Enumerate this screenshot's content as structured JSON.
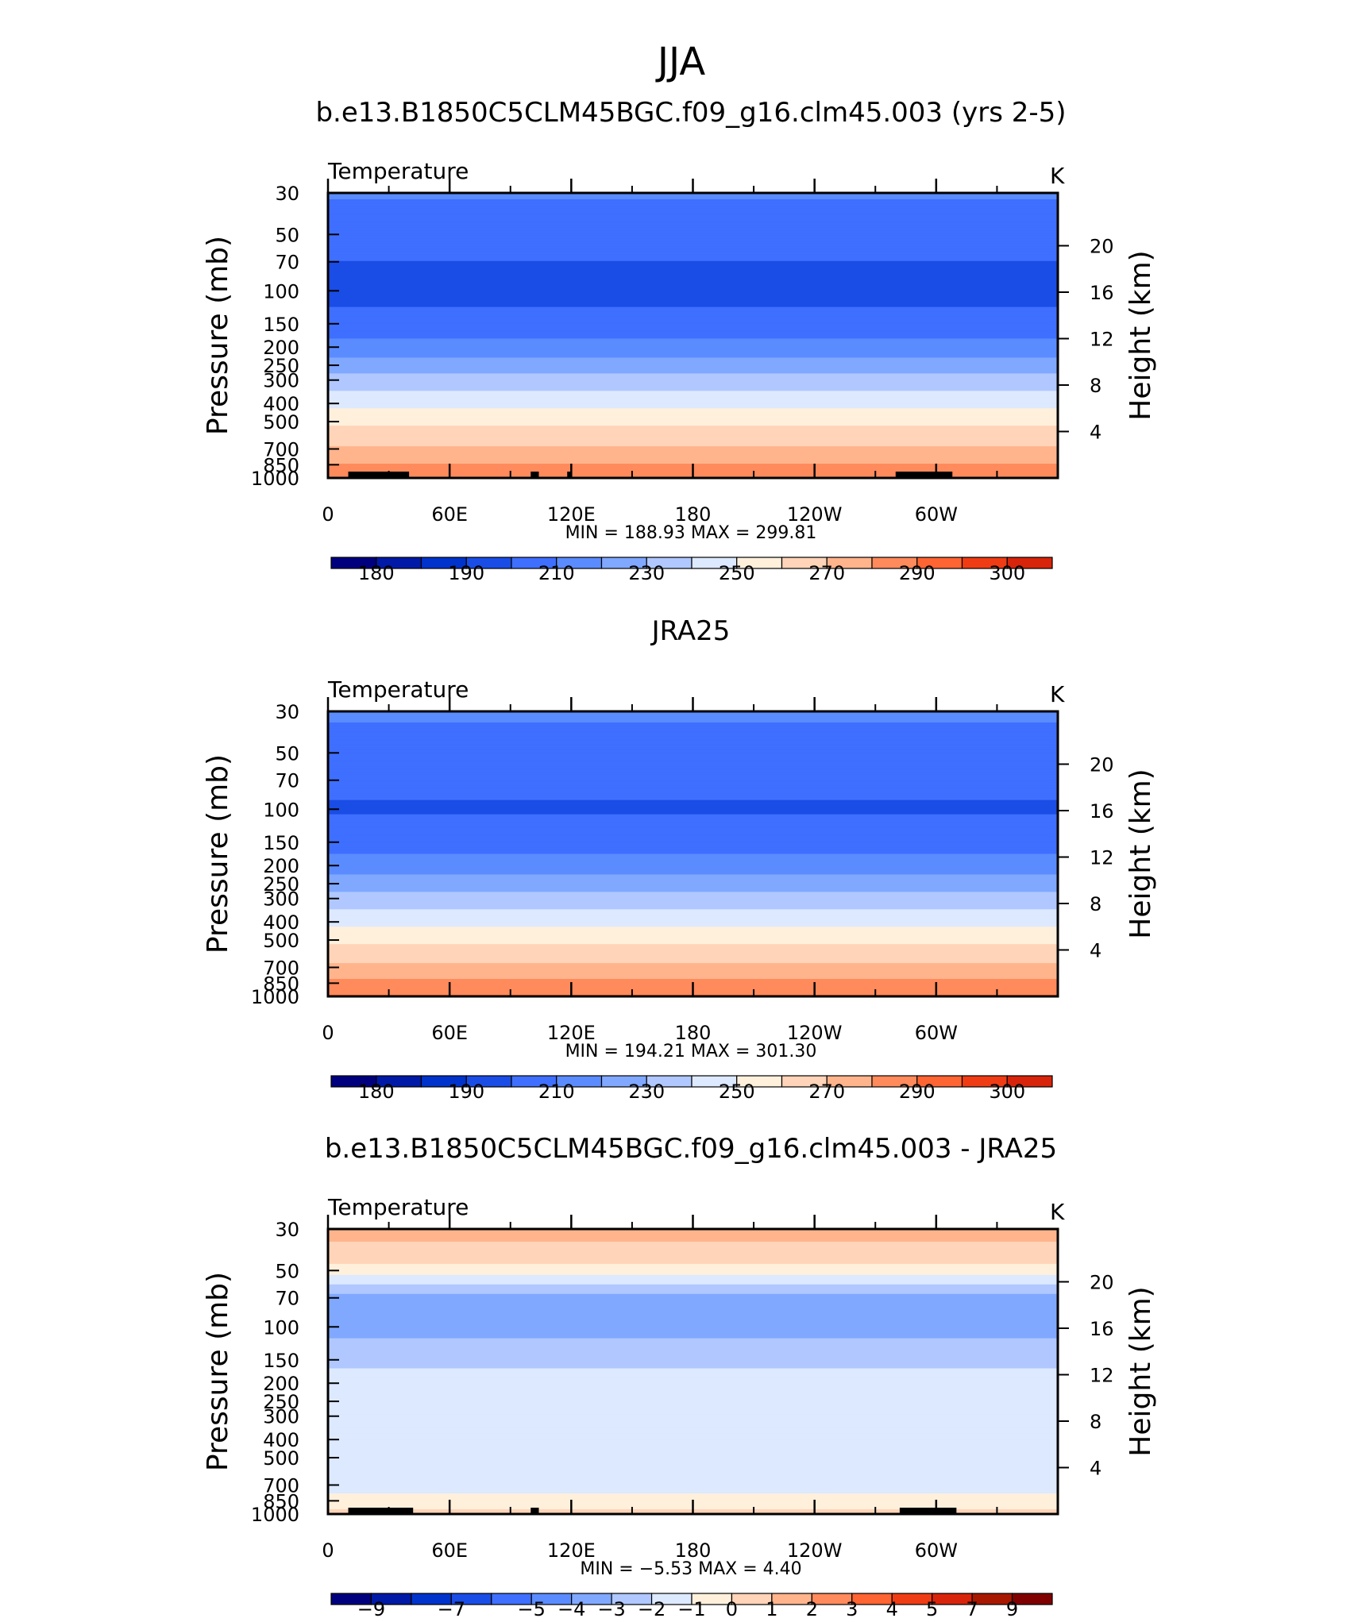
{
  "page": {
    "title": "JJA"
  },
  "colors": {
    "abs_levels_palette": [
      "#00007f",
      "#0019a6",
      "#0033cc",
      "#1a4de6",
      "#3f6fff",
      "#5b8cff",
      "#80a8ff",
      "#b0c8ff",
      "#dde9ff",
      "#fff0dc",
      "#ffd4b8",
      "#ffb48c",
      "#ff8a5c",
      "#ff6433",
      "#f03c14",
      "#d8240a",
      "#a81800",
      "#800000"
    ],
    "diff_levels_palette": [
      "#00007f",
      "#0019a6",
      "#0033cc",
      "#1a4de6",
      "#3f6fff",
      "#5b8cff",
      "#80a8ff",
      "#b0c8ff",
      "#dde9ff",
      "#fff0dc",
      "#ffd4b8",
      "#ffb48c",
      "#ff8a5c",
      "#ff6433",
      "#f03c14",
      "#d8240a",
      "#a81800",
      "#800000"
    ],
    "land_mask": "#000000"
  },
  "chart_data": [
    {
      "type": "heatmap",
      "title": "b.e13.B1850C5CLM45BGC.f09_g16.clm45.003 (yrs 2-5)",
      "field_label": "Temperature",
      "units": "K",
      "ylabel": "Pressure (mb)",
      "ylabel_right": "Height (km)",
      "x_ticklabels": [
        "0",
        "60E",
        "120E",
        "180",
        "120W",
        "60W"
      ],
      "x_values": [
        0,
        60,
        120,
        180,
        240,
        300
      ],
      "xlim": [
        0,
        360
      ],
      "y_ticklabels": [
        "30",
        "50",
        "70",
        "100",
        "150",
        "200",
        "250",
        "300",
        "400",
        "500",
        "700",
        "850",
        "1000"
      ],
      "ylim": [
        1000,
        30
      ],
      "yscale": "log",
      "height_ticklabels": [
        "20",
        "16",
        "12",
        "8",
        "4"
      ],
      "min_label": "MIN",
      "min_value": "188.93",
      "max_label": "MAX",
      "max_value": "299.81",
      "colorbar_levels": [
        175,
        180,
        185,
        190,
        200,
        210,
        220,
        230,
        240,
        250,
        260,
        270,
        280,
        290,
        295,
        300,
        305
      ],
      "colorbar_labels": [
        "180",
        "190",
        "210",
        "230",
        "250",
        "270",
        "290",
        "300"
      ],
      "profile": {
        "pressure": [
          30,
          40,
          50,
          70,
          100,
          150,
          200,
          250,
          300,
          400,
          500,
          700,
          850,
          1000
        ],
        "temperature": [
          211,
          207,
          203,
          200,
          197,
          203,
          214,
          224,
          234,
          247,
          258,
          271,
          281,
          288
        ]
      },
      "land_segments": [
        [
          10,
          40
        ],
        [
          100,
          104
        ],
        [
          118,
          120
        ],
        [
          280,
          308
        ]
      ]
    },
    {
      "type": "heatmap",
      "title": "JRA25",
      "field_label": "Temperature",
      "units": "K",
      "ylabel": "Pressure (mb)",
      "ylabel_right": "Height (km)",
      "x_ticklabels": [
        "0",
        "60E",
        "120E",
        "180",
        "120W",
        "60W"
      ],
      "x_values": [
        0,
        60,
        120,
        180,
        240,
        300
      ],
      "xlim": [
        0,
        360
      ],
      "y_ticklabels": [
        "30",
        "50",
        "70",
        "100",
        "150",
        "200",
        "250",
        "300",
        "400",
        "500",
        "700",
        "850",
        "1000"
      ],
      "ylim": [
        1000,
        30
      ],
      "yscale": "log",
      "height_ticklabels": [
        "20",
        "16",
        "12",
        "8",
        "4"
      ],
      "min_label": "MIN",
      "min_value": "194.21",
      "max_label": "MAX",
      "max_value": "301.30",
      "colorbar_levels": [
        175,
        180,
        185,
        190,
        200,
        210,
        220,
        230,
        240,
        250,
        260,
        270,
        280,
        290,
        295,
        300,
        305
      ],
      "colorbar_labels": [
        "180",
        "190",
        "210",
        "230",
        "250",
        "270",
        "290",
        "300"
      ],
      "profile": {
        "pressure": [
          30,
          40,
          50,
          70,
          100,
          150,
          200,
          250,
          300,
          400,
          500,
          700,
          850,
          1000
        ],
        "temperature": [
          212,
          208,
          205,
          202,
          199,
          205,
          215,
          225,
          234,
          247,
          258,
          272,
          283,
          291
        ]
      },
      "land_segments": []
    },
    {
      "type": "heatmap",
      "title": "b.e13.B1850C5CLM45BGC.f09_g16.clm45.003 - JRA25",
      "field_label": "Temperature",
      "units": "K",
      "ylabel": "Pressure (mb)",
      "ylabel_right": "Height (km)",
      "x_ticklabels": [
        "0",
        "60E",
        "120E",
        "180",
        "120W",
        "60W"
      ],
      "x_values": [
        0,
        60,
        120,
        180,
        240,
        300
      ],
      "xlim": [
        0,
        360
      ],
      "y_ticklabels": [
        "30",
        "50",
        "70",
        "100",
        "150",
        "200",
        "250",
        "300",
        "400",
        "500",
        "700",
        "850",
        "1000"
      ],
      "ylim": [
        1000,
        30
      ],
      "yscale": "log",
      "height_ticklabels": [
        "20",
        "16",
        "12",
        "8",
        "4"
      ],
      "min_label": "MIN",
      "min_value": "−5.53",
      "max_label": "MAX",
      "max_value": "4.40",
      "colorbar_levels": [
        -11,
        -9,
        -8,
        -7,
        -6,
        -5,
        -4,
        -3,
        -2,
        -1,
        0,
        1,
        2,
        3,
        4,
        5,
        7,
        9,
        11
      ],
      "colorbar_labels": [
        "−9",
        "−7",
        "−5",
        "−4",
        "−3",
        "−2",
        "−1",
        "0",
        "1",
        "2",
        "3",
        "4",
        "5",
        "7",
        "9"
      ],
      "profile": {
        "pressure": [
          30,
          40,
          50,
          60,
          70,
          85,
          100,
          130,
          150,
          200,
          300,
          500,
          700,
          850,
          1000
        ],
        "temperature": [
          1.5,
          0.6,
          -0.4,
          -2.2,
          -3.3,
          -3.6,
          -3.4,
          -2.6,
          -2.2,
          -1.6,
          -1.5,
          -1.3,
          -1.5,
          -0.6,
          0.4
        ]
      },
      "land_segments": [
        [
          10,
          42
        ],
        [
          100,
          104
        ],
        [
          282,
          310
        ]
      ]
    }
  ]
}
